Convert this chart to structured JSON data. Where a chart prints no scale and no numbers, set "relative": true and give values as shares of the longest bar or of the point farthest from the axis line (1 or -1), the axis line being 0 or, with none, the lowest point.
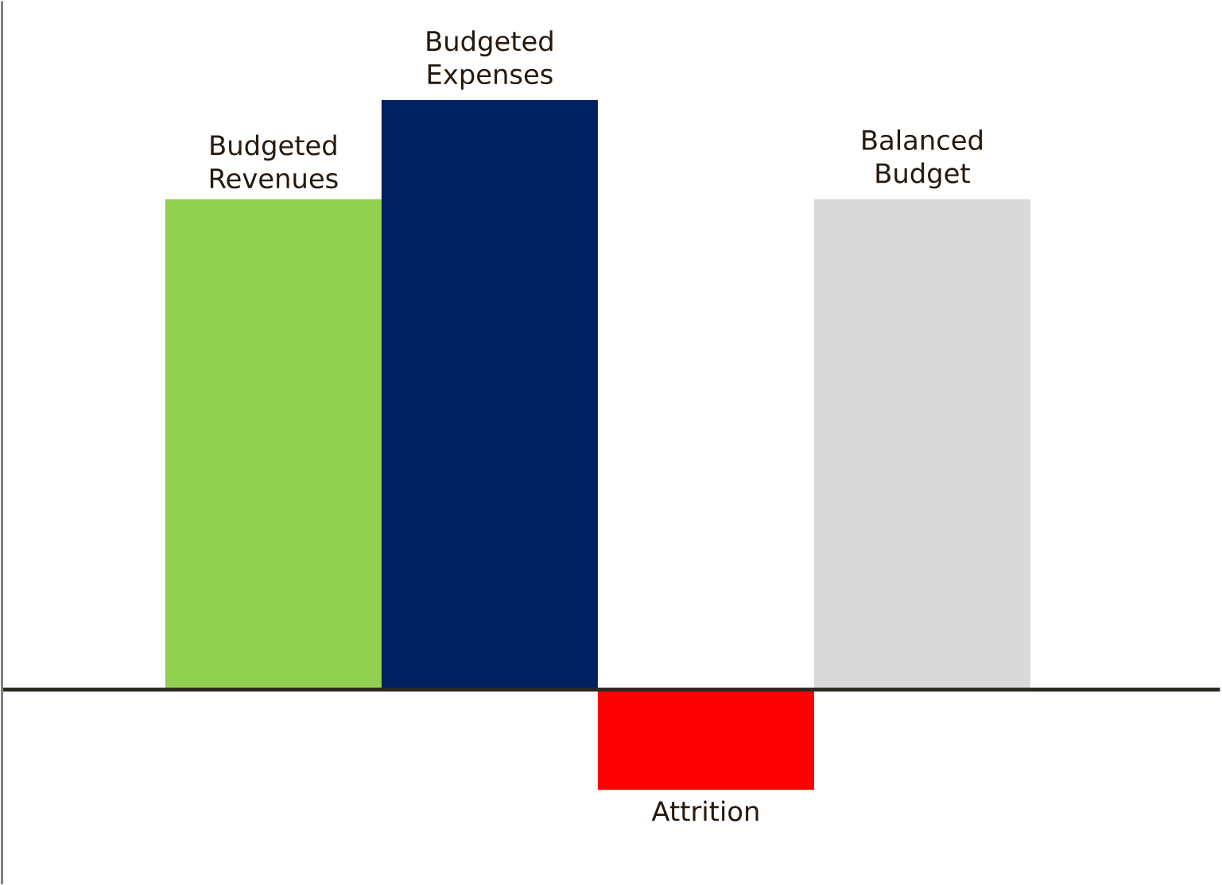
{
  "chart_data": {
    "type": "bar",
    "relative": true,
    "categories": [
      "Budgeted Revenues",
      "Budgeted Expenses",
      "Attrition",
      "Balanced Budget"
    ],
    "values": [
      0.832,
      1,
      -0.17,
      0.832
    ],
    "colors": [
      "#92d050",
      "#002060",
      "#ff0000",
      "#d9d9d9"
    ]
  }
}
